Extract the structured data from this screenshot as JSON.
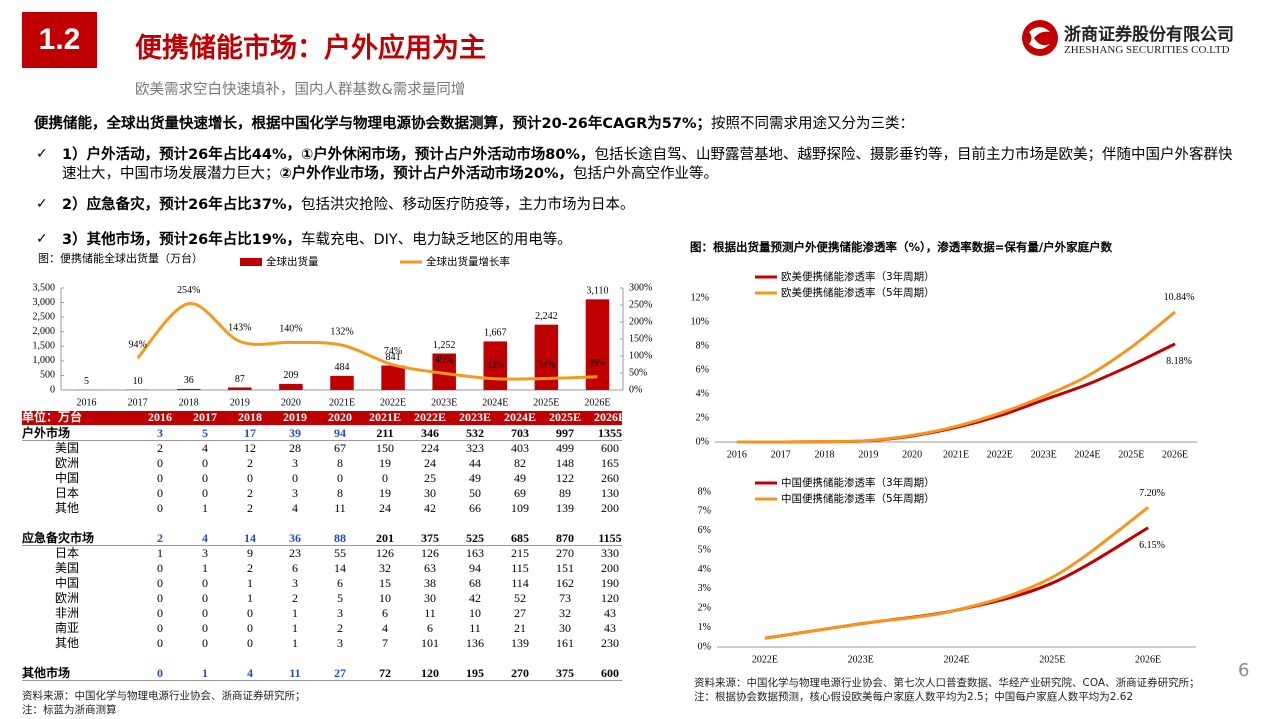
{
  "header": {
    "section": "1.2",
    "title": "便携储能市场：户外应用为主",
    "subtitle": "欧美需求空白快速填补，国内人群基数&需求量同增",
    "company": "浙商证券股份有限公司",
    "company_en": "ZHESHANG SECURITIES CO.LTD"
  },
  "intro": [
    {
      "text": "便携储能，全球出货量快速增长，根据中国化学与物理电源协会数据测算，预计20-26年CAGR为57%；",
      "bold": true
    },
    {
      "text": "按照不同需求用途又分为三类：",
      "bold": false
    }
  ],
  "bullets": [
    [
      {
        "text": "1）户外活动，预计26年占比44%，①户外休闲市场，预计占户外活动市场80%，",
        "bold": true
      },
      {
        "text": "包括长途自驾、山野露营基地、越野探险、摄影垂钓等，目前主力市场是欧美；伴随中国户外客群快速壮大，中国市场发展潜力巨大；",
        "bold": false
      },
      {
        "text": "②户外作业市场，预计占户外活动市场20%，",
        "bold": true
      },
      {
        "text": "包括户外高空作业等。",
        "bold": false
      }
    ],
    [
      {
        "text": "2）应急备灾，预计26年占比37%，",
        "bold": true
      },
      {
        "text": "包括洪灾抢险、移动医疗防疫等，主力市场为日本。",
        "bold": false
      }
    ],
    [
      {
        "text": "3）其他市场，预计26年占比19%，",
        "bold": true
      },
      {
        "text": "车载充电、DIY、电力缺乏地区的用电等。",
        "bold": false
      }
    ]
  ],
  "chart_data": [
    {
      "type": "combo",
      "title": "图：便携储能全球出货量（万台）",
      "legend": "top",
      "categories": [
        "2016",
        "2017",
        "2018",
        "2019",
        "2020",
        "2021E",
        "2022E",
        "2023E",
        "2024E",
        "2025E",
        "2026E"
      ],
      "series": [
        {
          "name": "全球出货量",
          "type": "bar",
          "color": "#c00000",
          "values": [
            5,
            10,
            36,
            87,
            209,
            484,
            841,
            1252,
            1667,
            2242,
            3110
          ],
          "value_labels": [
            "5",
            "10",
            "36",
            "87",
            "209",
            "484",
            "841",
            "1,252",
            "1,667",
            "2,242",
            "3,110"
          ]
        },
        {
          "name": "全球出货量增长率",
          "type": "line",
          "axis": "y2",
          "color": "#f39a1e",
          "values": [
            null,
            94,
            254,
            143,
            140,
            132,
            74,
            49,
            33,
            34,
            39
          ],
          "value_labels": [
            null,
            "94%",
            "254%",
            "143%",
            "140%",
            "132%",
            "74%",
            "49%",
            "33%",
            "34%",
            "39%"
          ]
        }
      ],
      "ylim": [
        0,
        3500
      ],
      "yticks": [
        0,
        500,
        {
          "value": 1000,
          "label": "1,000"
        },
        {
          "value": 1500,
          "label": "1,500"
        },
        {
          "value": 2000,
          "label": "2,000"
        },
        {
          "value": 2500,
          "label": "2,500"
        },
        {
          "value": 3000,
          "label": "3,000"
        },
        {
          "value": 3500,
          "label": "3,500"
        }
      ],
      "y2lim": [
        0,
        300
      ],
      "y2ticks": [
        {
          "value": 0,
          "label": "0%"
        },
        {
          "value": 50,
          "label": "50%"
        },
        {
          "value": 100,
          "label": "100%"
        },
        {
          "value": 150,
          "label": "150%"
        },
        {
          "value": 200,
          "label": "200%"
        },
        {
          "value": 250,
          "label": "250%"
        },
        {
          "value": 300,
          "label": "300%"
        }
      ]
    },
    {
      "type": "line",
      "title": "图：根据出货量预测户外便携储能渗透率（%），渗透率数据=保有量/户外家庭户数",
      "legend": "upper left",
      "categories": [
        "2016",
        "2017",
        "2018",
        "2019",
        "2020",
        "2021E",
        "2022E",
        "2023E",
        "2024E",
        "2025E",
        "2026E"
      ],
      "series": [
        {
          "name": "欧美便携储能渗透率（3年周期）",
          "color": "#c00000",
          "values": [
            0,
            0,
            0.02,
            0.1,
            0.5,
            1.2,
            2.2,
            3.5,
            4.8,
            6.4,
            8.18
          ],
          "value_labels": [
            null,
            null,
            null,
            null,
            null,
            null,
            null,
            null,
            null,
            null,
            "8.18%"
          ]
        },
        {
          "name": "欧美便携储能渗透率（5年周期）",
          "color": "#f7941d",
          "values": [
            0,
            0,
            0.03,
            0.12,
            0.55,
            1.3,
            2.4,
            3.8,
            5.5,
            7.9,
            10.84
          ],
          "value_labels": [
            null,
            null,
            null,
            null,
            null,
            null,
            null,
            null,
            null,
            null,
            "10.84%"
          ]
        }
      ],
      "ylim": [
        0,
        12
      ],
      "yticks": [
        {
          "value": 0,
          "label": "0%"
        },
        {
          "value": 2,
          "label": "2%"
        },
        {
          "value": 4,
          "label": "4%"
        },
        {
          "value": 6,
          "label": "6%"
        },
        {
          "value": 8,
          "label": "8%"
        },
        {
          "value": 10,
          "label": "10%"
        },
        {
          "value": 12,
          "label": "12%"
        }
      ]
    },
    {
      "type": "line",
      "legend": "upper left",
      "categories": [
        "2022E",
        "2023E",
        "2024E",
        "2025E",
        "2026E"
      ],
      "series": [
        {
          "name": "中国便携储能渗透率（3年周期）",
          "color": "#c00000",
          "values": [
            0.45,
            1.2,
            1.9,
            3.3,
            6.15
          ],
          "value_labels": [
            null,
            null,
            null,
            null,
            "6.15%"
          ]
        },
        {
          "name": "中国便携储能渗透率（5年周期）",
          "color": "#f7941d",
          "values": [
            0.45,
            1.2,
            1.9,
            3.6,
            7.2
          ],
          "value_labels": [
            null,
            null,
            null,
            null,
            "7.20%"
          ]
        }
      ],
      "ylim": [
        0,
        8
      ],
      "yticks": [
        {
          "value": 0,
          "label": "0%"
        },
        {
          "value": 1,
          "label": "1%"
        },
        {
          "value": 2,
          "label": "2%"
        },
        {
          "value": 3,
          "label": "3%"
        },
        {
          "value": 4,
          "label": "4%"
        },
        {
          "value": 5,
          "label": "5%"
        },
        {
          "value": 6,
          "label": "6%"
        },
        {
          "value": 7,
          "label": "7%"
        },
        {
          "value": 8,
          "label": "8%"
        }
      ]
    }
  ],
  "table": {
    "header": [
      "单位：万台",
      "2016",
      "2017",
      "2018",
      "2019",
      "2020",
      "2021E",
      "2022E",
      "2023E",
      "2024E",
      "2025E",
      "2026E"
    ],
    "groups": [
      [
        [
          "户外市场",
          3,
          5,
          17,
          39,
          94,
          211,
          346,
          532,
          703,
          997,
          1355
        ],
        [
          "美国",
          2,
          4,
          12,
          28,
          67,
          150,
          224,
          323,
          403,
          499,
          600
        ],
        [
          "欧洲",
          0,
          0,
          2,
          3,
          8,
          19,
          24,
          44,
          82,
          148,
          165
        ],
        [
          "中国",
          0,
          0,
          0,
          0,
          0,
          0,
          25,
          49,
          49,
          122,
          260
        ],
        [
          "日本",
          0,
          0,
          2,
          3,
          8,
          19,
          30,
          50,
          69,
          89,
          130
        ],
        [
          "其他",
          0,
          1,
          2,
          4,
          11,
          24,
          42,
          66,
          109,
          139,
          200
        ]
      ],
      [
        [
          "应急备灾市场",
          2,
          4,
          14,
          36,
          88,
          201,
          375,
          525,
          685,
          870,
          1155
        ],
        [
          "日本",
          1,
          3,
          9,
          23,
          55,
          126,
          126,
          163,
          215,
          270,
          330
        ],
        [
          "美国",
          0,
          1,
          2,
          6,
          14,
          32,
          63,
          94,
          115,
          151,
          200
        ],
        [
          "中国",
          0,
          0,
          1,
          3,
          6,
          15,
          38,
          68,
          114,
          162,
          190
        ],
        [
          "欧洲",
          0,
          0,
          1,
          2,
          5,
          10,
          30,
          42,
          52,
          73,
          120
        ],
        [
          "非洲",
          0,
          0,
          0,
          1,
          3,
          6,
          11,
          10,
          27,
          32,
          43
        ],
        [
          "南亚",
          0,
          0,
          0,
          1,
          2,
          4,
          6,
          11,
          21,
          30,
          43
        ],
        [
          "其他",
          0,
          0,
          0,
          1,
          3,
          7,
          101,
          136,
          139,
          161,
          230
        ]
      ],
      [
        [
          "其他市场",
          0,
          1,
          4,
          11,
          27,
          72,
          120,
          195,
          270,
          375,
          600
        ]
      ]
    ]
  },
  "notes_left": [
    "资料来源：中国化学与物理电源行业协会、浙商证券研究所；",
    "注：标蓝为浙商测算"
  ],
  "notes_right": [
    "资料来源：中国化学与物理电源行业协会、第七次人口普查数据、华经产业研究院、COA、浙商证券研究所；",
    "注：根据协会数据预测，核心假设欧美每户家庭人数平均为2.5；中国每户家庭人数平均为2.62"
  ],
  "page_number": "6"
}
